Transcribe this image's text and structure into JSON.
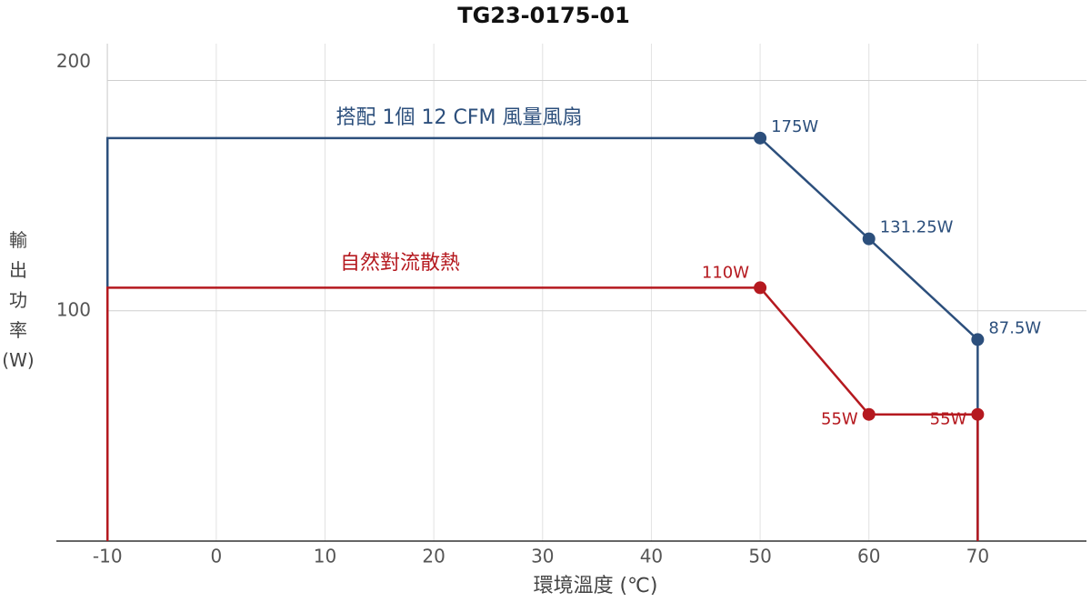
{
  "chart_data": {
    "type": "line",
    "title": "TG23-0175-01",
    "x_label": "環境溫度 (℃)",
    "y_label": [
      "輸",
      "出",
      "功",
      "率",
      "(W)"
    ],
    "xlim": [
      -14.7,
      80
    ],
    "xticks": [
      -10,
      0,
      10,
      20,
      30,
      40,
      50,
      60,
      70
    ],
    "ylim": [
      0,
      216
    ],
    "yticks": [
      100,
      200
    ],
    "grid": true,
    "series": [
      {
        "name": "搭配 1個 12 CFM 風量風扇",
        "color": "#2c4f7c",
        "x": [
          -10,
          -10,
          50,
          60,
          70,
          70
        ],
        "values": [
          0,
          175,
          175,
          131.25,
          87.5,
          0
        ],
        "value_labels": [
          null,
          null,
          "175W",
          "131.25W",
          "87.5W",
          null
        ]
      },
      {
        "name": "自然對流散熱",
        "color": "#b5191f",
        "x": [
          -10,
          -10,
          50,
          60,
          70,
          70
        ],
        "values": [
          0,
          110,
          110,
          55,
          55,
          0
        ],
        "value_labels": [
          null,
          null,
          "110W",
          "55W",
          "55W",
          null
        ]
      }
    ]
  }
}
